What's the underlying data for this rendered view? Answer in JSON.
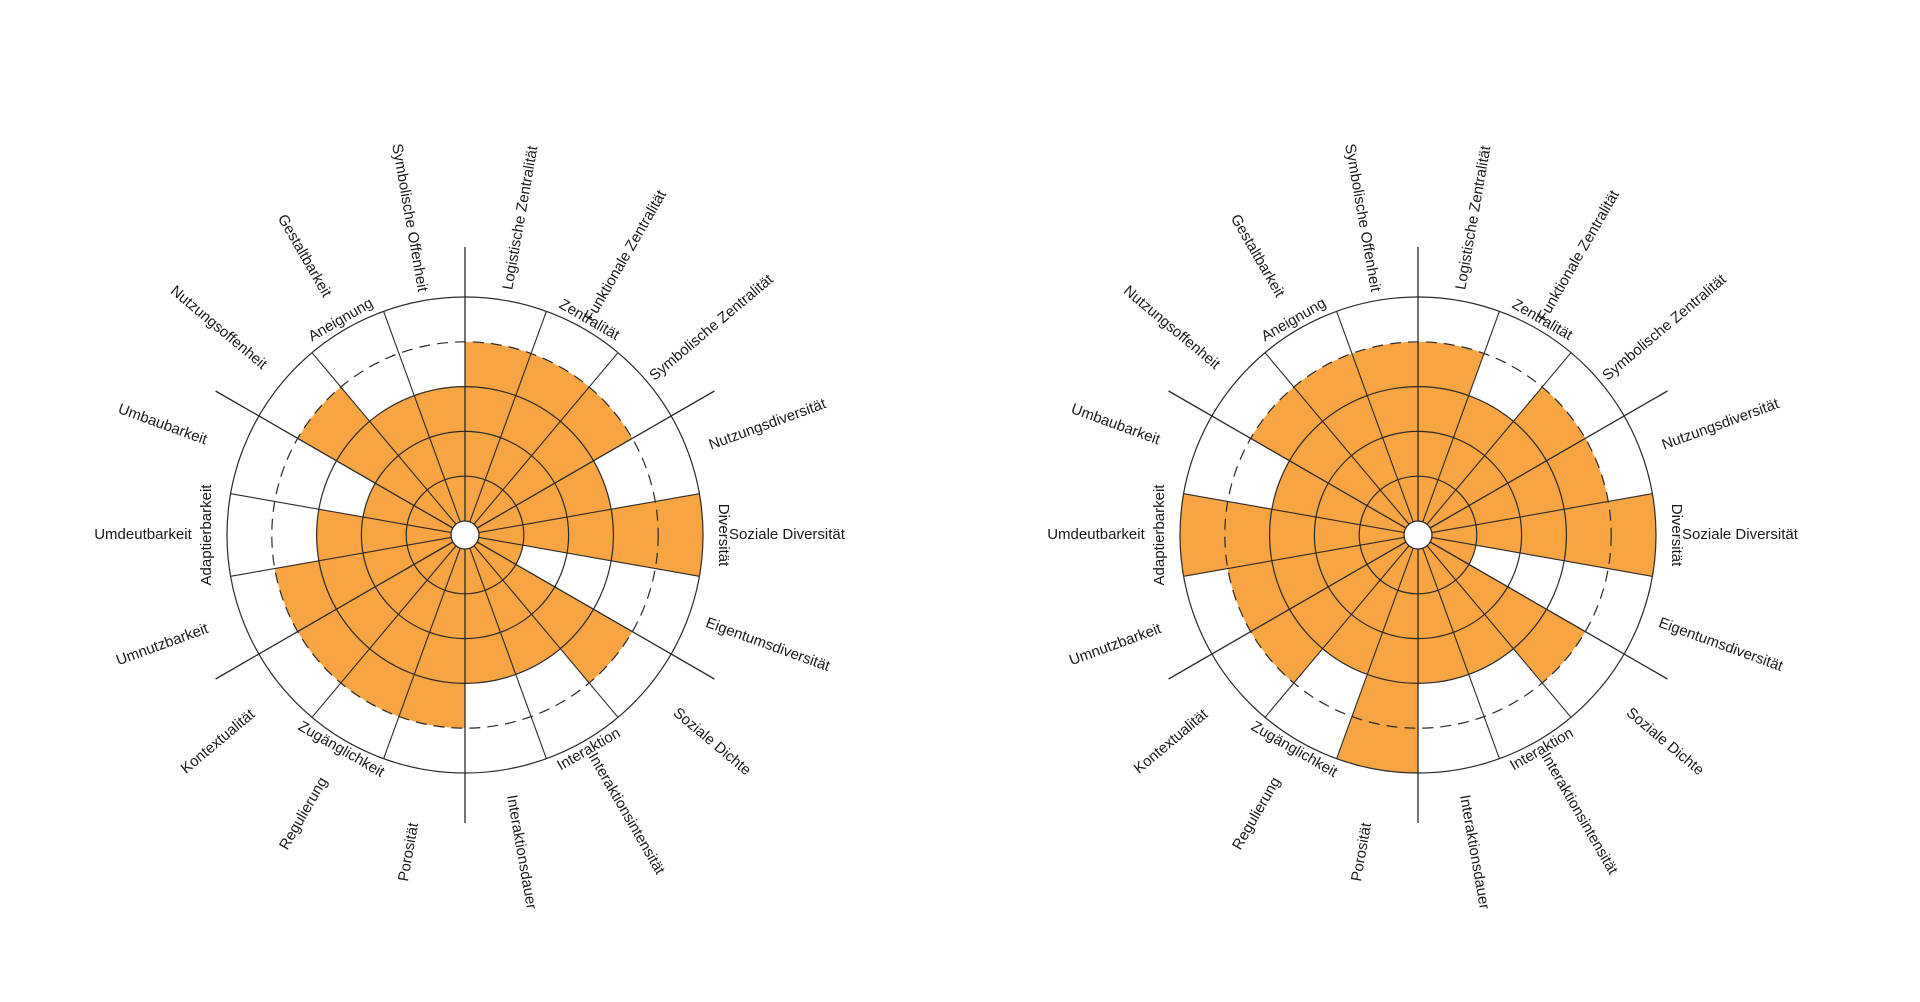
{
  "colors": {
    "fill": "#F7A443",
    "line": "#2a2a2a",
    "background": "#ffffff"
  },
  "chart_data": [
    {
      "type": "polar-bar",
      "max": 5,
      "grid": true,
      "dashed_reference": 4,
      "sectors": [
        "Logistische Zentralität",
        "Funktionale Zentralität",
        "Symbolische Zentralität",
        "Nutzungsdiversität",
        "Soziale Diversität",
        "Eigentumsdiversität",
        "Soziale Dichte",
        "Interaktionsintensität",
        "Interaktionsdauer",
        "Porosität",
        "Regulierung",
        "Kontextualität",
        "Umnutzbarkeit",
        "Umdeutbarkeit",
        "Umbaubarkeit",
        "Nutzungsoffenheit",
        "Gestaltbarkeit",
        "Symbolische Offenheit"
      ],
      "groups": [
        "Zentralität",
        "Diversität",
        "Interaktion",
        "Zugänglichkeit",
        "Adaptierbarkeit",
        "Aneignung"
      ],
      "values": [
        4,
        4,
        4,
        3,
        5,
        1,
        4,
        3,
        3,
        4,
        4,
        4,
        4,
        3,
        2,
        4,
        3,
        3
      ]
    },
    {
      "type": "polar-bar",
      "max": 5,
      "grid": true,
      "dashed_reference": 4,
      "sectors": [
        "Logistische Zentralität",
        "Funktionale Zentralität",
        "Symbolische Zentralität",
        "Nutzungsdiversität",
        "Soziale Diversität",
        "Eigentumsdiversität",
        "Soziale Dichte",
        "Interaktionsintensität",
        "Interaktionsdauer",
        "Porosität",
        "Regulierung",
        "Kontextualität",
        "Umnutzbarkeit",
        "Umdeutbarkeit",
        "Umbaubarkeit",
        "Nutzungsoffenheit",
        "Gestaltbarkeit",
        "Symbolische Offenheit"
      ],
      "groups": [
        "Zentralität",
        "Diversität",
        "Interaktion",
        "Zugänglichkeit",
        "Adaptierbarkeit",
        "Aneignung"
      ],
      "values": [
        4,
        3,
        4,
        4,
        5,
        1,
        4,
        3,
        3,
        5,
        3,
        4,
        4,
        5,
        3,
        4,
        4,
        4
      ]
    }
  ]
}
